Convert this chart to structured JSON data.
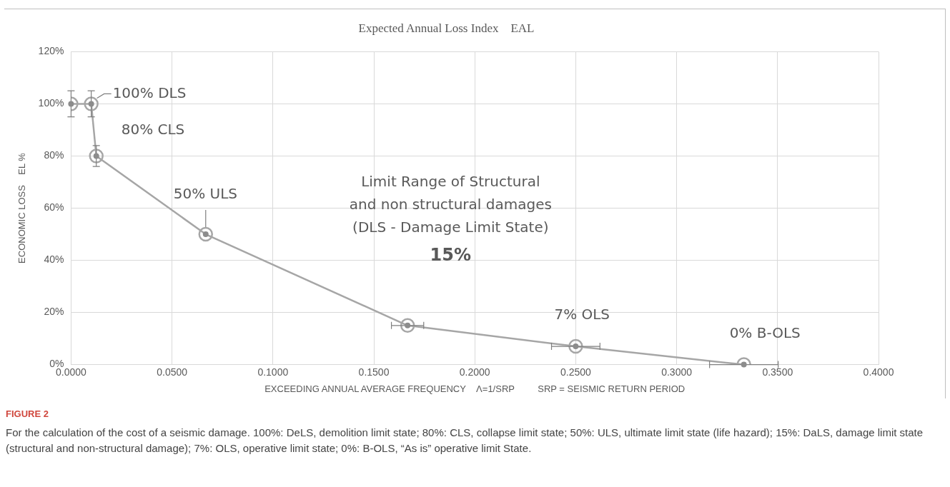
{
  "chart_data": {
    "type": "line",
    "title": "Expected Annual Loss Index    EAL",
    "xlabel": "EXCEEDING ANNUAL AVERAGE FREQUENCY    Λ=1/SRP         SRP = SEISMIC RETURN PERIOD",
    "ylabel": "ECONOMIC LOSS    EL %",
    "x": [
      0,
      0.01,
      0.0125,
      0.0667,
      0.1667,
      0.25,
      0.3333
    ],
    "series": [
      {
        "color": "#a6a6a6",
        "values": [
          100,
          100,
          80,
          50,
          15,
          7,
          0
        ],
        "errors": [
          5,
          5,
          4,
          null,
          null,
          null,
          null
        ],
        "xerrors": [
          null,
          null,
          null,
          null,
          0.008,
          0.012,
          0.017
        ]
      }
    ],
    "xlim": [
      0,
      0.4
    ],
    "xticks": [
      {
        "value": 0,
        "label": "0.0000"
      },
      {
        "value": 0.05,
        "label": "0.0500"
      },
      {
        "value": 0.1,
        "label": "0.1000"
      },
      {
        "value": 0.15,
        "label": "0.1500"
      },
      {
        "value": 0.2,
        "label": "0.2000"
      },
      {
        "value": 0.25,
        "label": "0.2500"
      },
      {
        "value": 0.3,
        "label": "0.3000"
      },
      {
        "value": 0.35,
        "label": "0.3500"
      },
      {
        "value": 0.4,
        "label": "0.4000"
      }
    ],
    "ylim": [
      0,
      120
    ],
    "yticks": [
      {
        "value": 0,
        "label": "0%"
      },
      {
        "value": 20,
        "label": "20%"
      },
      {
        "value": 40,
        "label": "40%"
      },
      {
        "value": 60,
        "label": "60%"
      },
      {
        "value": 80,
        "label": "80%"
      },
      {
        "value": 100,
        "label": "100%"
      },
      {
        "value": 120,
        "label": "120%"
      }
    ],
    "grid": true,
    "legend": false,
    "marker": "circle",
    "line_style": "solid",
    "annotations": [
      {
        "text": "100% DLS",
        "x": 0.01,
        "y": 100
      },
      {
        "text": "80% CLS",
        "x": 0.0125,
        "y": 80
      },
      {
        "text": "50% ULS",
        "x": 0.0667,
        "y": 50
      },
      "Limit Range of Structural\nand non structural damages\n(DLS - Damage Limit State)\n15%",
      {
        "text": "7% OLS",
        "x": 0.25,
        "y": 7
      },
      {
        "text": "0% B-OLS",
        "x": 0.3333,
        "y": 0
      },
      "FIGURE 2",
      "For the calculation of the cost of a seismic damage. 100%: DeLS, demolition limit state; 80%: CLS, collapse limit state; 50%: ULS, ultimate limit state (life hazard); 15%: DaLS, damage limit state (structural and non-structural damage); 7%: OLS, operative limit state; 0%: B-OLS, “As is” operative limit State."
    ]
  }
}
